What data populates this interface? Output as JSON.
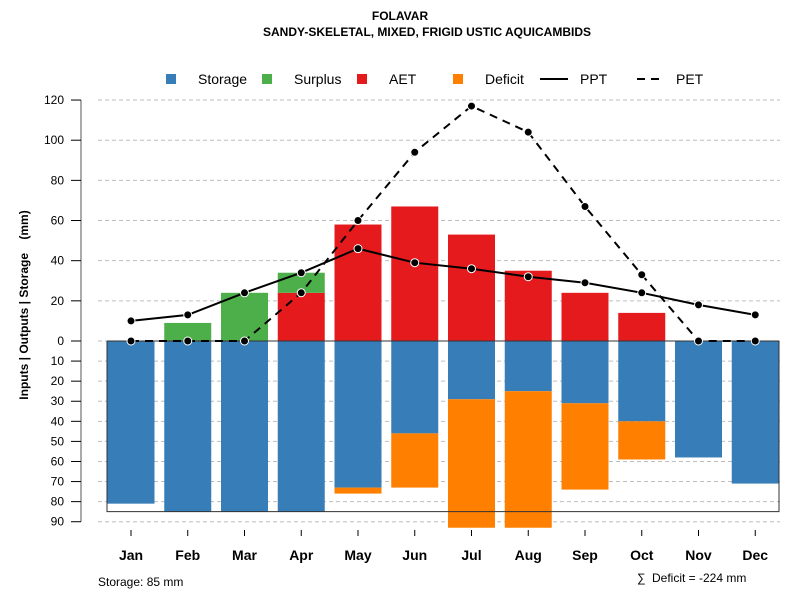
{
  "chart_data": {
    "type": "bar",
    "title": "FOLAVAR",
    "subtitle": "SANDY-SKELETAL, MIXED, FRIGID USTIC AQUICAMBIDS",
    "ylabel": "Inputs | Outputs | Storage    (mm)",
    "xlabel": "",
    "categories": [
      "Jan",
      "Feb",
      "Mar",
      "Apr",
      "May",
      "Jun",
      "Jul",
      "Aug",
      "Sep",
      "Oct",
      "Nov",
      "Dec"
    ],
    "upper_ylim": [
      0,
      120
    ],
    "upper_ticks": [
      "0",
      "20",
      "40",
      "60",
      "80",
      "100",
      "120"
    ],
    "lower_ylim": [
      0,
      90
    ],
    "lower_ticks": [
      "10",
      "20",
      "30",
      "40",
      "50",
      "60",
      "70",
      "80",
      "90"
    ],
    "grid": true,
    "legend_position": "top",
    "legend": [
      {
        "label": "Storage",
        "kind": "box",
        "color": "#377EB8"
      },
      {
        "label": "Surplus",
        "kind": "box",
        "color": "#4DAF4A"
      },
      {
        "label": "AET",
        "kind": "box",
        "color": "#E41A1C"
      },
      {
        "label": "Deficit",
        "kind": "box",
        "color": "#FF7F00"
      },
      {
        "label": "PPT",
        "kind": "solid-line",
        "color": "#000000"
      },
      {
        "label": "PET",
        "kind": "dashed-line",
        "color": "#000000"
      }
    ],
    "series": [
      {
        "name": "AET",
        "values": [
          0,
          0,
          0,
          24,
          58,
          67,
          53,
          35,
          24,
          14,
          0,
          0
        ]
      },
      {
        "name": "Surplus",
        "values": [
          0,
          9,
          24,
          10,
          0,
          0,
          0,
          0,
          0,
          0,
          0,
          0
        ]
      },
      {
        "name": "Storage",
        "values": [
          81,
          85,
          85,
          85,
          73,
          46,
          29,
          25,
          31,
          40,
          58,
          71
        ]
      },
      {
        "name": "Deficit",
        "values": [
          0,
          0,
          0,
          0,
          3,
          27,
          64,
          68,
          43,
          19,
          0,
          0
        ]
      },
      {
        "name": "PPT",
        "values": [
          10,
          13,
          24,
          34,
          46,
          39,
          36,
          32,
          29,
          24,
          18,
          13
        ]
      },
      {
        "name": "PET",
        "values": [
          0,
          0,
          0,
          24,
          60,
          94,
          117,
          104,
          67,
          33,
          0,
          0
        ]
      }
    ],
    "storage_capacity": 85,
    "colors": {
      "storage": "#377EB8",
      "surplus": "#4DAF4A",
      "aet": "#E41A1C",
      "deficit": "#FF7F00",
      "grid": "#BEBEBE"
    },
    "annotations": {
      "storage_note": "Storage: 85 mm",
      "deficit_symbol": "∑",
      "deficit_note": "Deficit = -224 mm"
    }
  }
}
